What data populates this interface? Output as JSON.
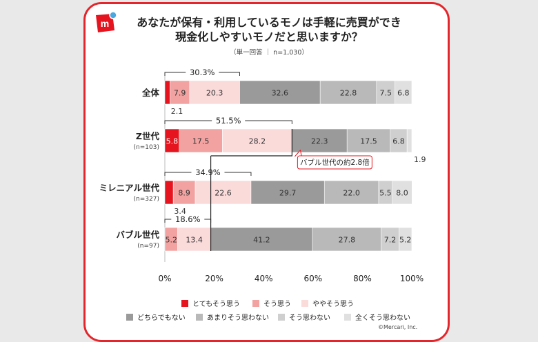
{
  "title_line1": "あなたが保有・利用しているモノは手軽に売買ができ",
  "title_line2": "現金化しやすいモノだと思いますか？",
  "subtitle": "（単一回答 ｜ n=1,030）",
  "credit": "©Mercari, Inc.",
  "colors": {
    "とてもそう思う": "#e6141e",
    "そう思う": "#f2a2a0",
    "ややそう思う": "#fbdada",
    "どちらでもない": "#9a9a9a",
    "あまりそう思わない": "#b9b9b9",
    "そう思わない": "#cfcfcf",
    "全くそう思わない": "#e0e0e0"
  },
  "chart_data": {
    "type": "bar",
    "orientation": "horizontal",
    "stacked": true,
    "categories": [
      "全体",
      "Z世代",
      "ミレニアル世代",
      "バブル世代"
    ],
    "category_notes": [
      "",
      "(n=103)",
      "(n=327)",
      "(n=97)"
    ],
    "series": [
      {
        "name": "とてもそう思う",
        "values": [
          2.1,
          5.8,
          3.4,
          0
        ]
      },
      {
        "name": "そう思う",
        "values": [
          7.9,
          17.5,
          8.9,
          5.2
        ]
      },
      {
        "name": "ややそう思う",
        "values": [
          20.3,
          28.2,
          22.6,
          13.4
        ]
      },
      {
        "name": "どちらでもない",
        "values": [
          32.6,
          22.3,
          29.7,
          41.2
        ]
      },
      {
        "name": "あまりそう思わない",
        "values": [
          22.8,
          17.5,
          22.0,
          27.8
        ]
      },
      {
        "name": "そう思わない",
        "values": [
          7.5,
          6.8,
          5.5,
          7.2
        ]
      },
      {
        "name": "全くそう思わない",
        "values": [
          6.8,
          1.9,
          8.0,
          5.2
        ]
      }
    ],
    "label_text": [
      [
        "2.1",
        "5.8",
        "3.4",
        ""
      ],
      [
        "7.9",
        "17.5",
        "8.9",
        "5.2"
      ],
      [
        "20.3",
        "28.2",
        "22.6",
        "13.4"
      ],
      [
        "32.6",
        "22.3",
        "29.7",
        "41.2"
      ],
      [
        "22.8",
        "17.5",
        "22.0",
        "27.8"
      ],
      [
        "7.5",
        "6.8",
        "5.5",
        "7.2"
      ],
      [
        "6.8",
        "1.9",
        "8.0",
        "5.2"
      ]
    ],
    "positive_totals": [
      "30.3%",
      "51.5%",
      "34.9%",
      "18.6%"
    ],
    "xlim": [
      0,
      100
    ],
    "xticks": [
      "0%",
      "20%",
      "40%",
      "60%",
      "80%",
      "100%"
    ],
    "annotation": "バブル世代の約2.8倍",
    "legend_position": "bottom"
  }
}
